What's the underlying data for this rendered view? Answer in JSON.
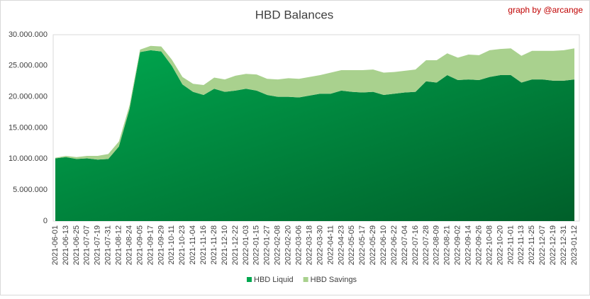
{
  "chart_data": {
    "type": "stacked_area",
    "title": "HBD Balances",
    "annotation": "graph by @arcange",
    "categories": [
      "2021-06-01",
      "2021-06-13",
      "2021-06-25",
      "2021-07-07",
      "2021-07-19",
      "2021-07-31",
      "2021-08-12",
      "2021-08-24",
      "2021-09-05",
      "2021-09-17",
      "2021-09-29",
      "2021-10-11",
      "2021-10-23",
      "2021-11-04",
      "2021-11-16",
      "2021-11-28",
      "2021-12-10",
      "2021-12-22",
      "2022-01-03",
      "2022-01-15",
      "2022-01-27",
      "2022-02-08",
      "2022-02-20",
      "2022-03-06",
      "2022-03-18",
      "2022-03-30",
      "2022-04-11",
      "2022-04-23",
      "2022-05-05",
      "2022-05-17",
      "2022-05-29",
      "2022-06-10",
      "2022-06-22",
      "2022-07-04",
      "2022-07-16",
      "2022-07-28",
      "2022-08-09",
      "2022-08-21",
      "2022-09-02",
      "2022-09-14",
      "2022-09-26",
      "2022-10-08",
      "2022-10-20",
      "2022-11-01",
      "2022-11-13",
      "2022-11-25",
      "2022-12-07",
      "2022-12-19",
      "2022-12-31",
      "2023-01-12"
    ],
    "series": [
      {
        "name": "HBD Liquid",
        "color": "#00a84f",
        "values": [
          10100000,
          10300000,
          10000000,
          10100000,
          9900000,
          10000000,
          12000000,
          18000000,
          27200000,
          27500000,
          27300000,
          25000000,
          22000000,
          20800000,
          20300000,
          21300000,
          20800000,
          21000000,
          21300000,
          21000000,
          20300000,
          20000000,
          20000000,
          19900000,
          20200000,
          20500000,
          20500000,
          21000000,
          20800000,
          20700000,
          20800000,
          20300000,
          20500000,
          20700000,
          20800000,
          22500000,
          22300000,
          23500000,
          22700000,
          22800000,
          22700000,
          23200000,
          23500000,
          23500000,
          22300000,
          22800000,
          22800000,
          22600000,
          22600000,
          22800000
        ]
      },
      {
        "name": "HBD Savings",
        "color": "#a9d18e",
        "values": [
          100000,
          200000,
          300000,
          400000,
          600000,
          800000,
          800000,
          600000,
          400000,
          700000,
          800000,
          1000000,
          1200000,
          1300000,
          1600000,
          1800000,
          2000000,
          2400000,
          2400000,
          2600000,
          2600000,
          2800000,
          3000000,
          3000000,
          3000000,
          3000000,
          3400000,
          3300000,
          3500000,
          3600000,
          3600000,
          3600000,
          3500000,
          3500000,
          3600000,
          3400000,
          3600000,
          3500000,
          3600000,
          4000000,
          4000000,
          4300000,
          4200000,
          4300000,
          4300000,
          4600000,
          4600000,
          4800000,
          4900000,
          5000000
        ]
      }
    ],
    "ylim": [
      0,
      30000000
    ],
    "yticks": [
      0,
      {
        "value": 5000000,
        "label": "5.000.000"
      },
      {
        "value": 10000000,
        "label": "10.000.000"
      },
      {
        "value": 15000000,
        "label": "15.000.000"
      },
      {
        "value": 20000000,
        "label": "20.000.000"
      },
      {
        "value": 25000000,
        "label": "25.000.000"
      },
      {
        "value": 30000000,
        "label": "30.000.000"
      }
    ],
    "grid": false,
    "legend": "bottom"
  }
}
